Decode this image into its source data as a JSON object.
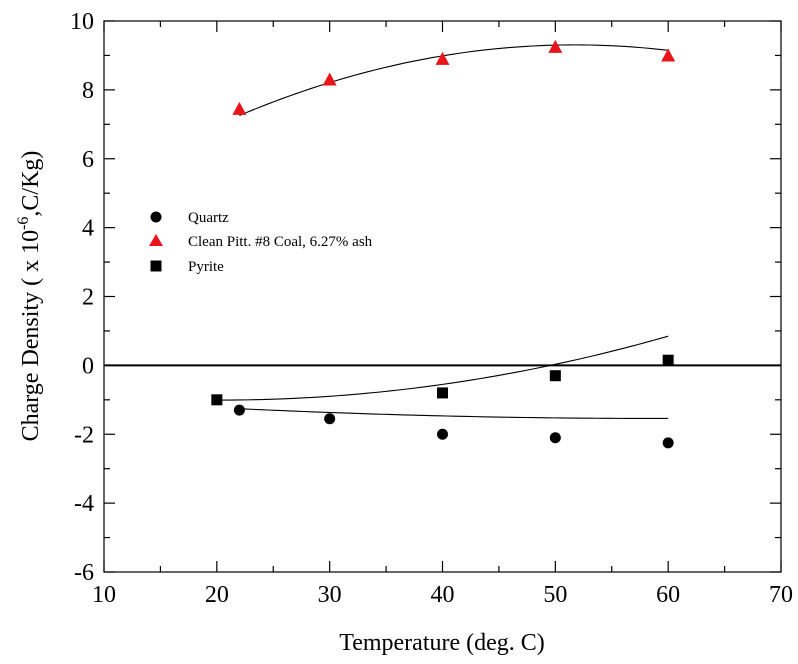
{
  "chart_data": {
    "type": "scatter",
    "title": "",
    "xlabel": "Temperature (deg. C)",
    "ylabel_main": "Charge Density ( x 10",
    "ylabel_exp": "-6",
    "ylabel_tail": ",C/Kg)",
    "xlim": [
      10,
      70
    ],
    "ylim": [
      -6,
      10
    ],
    "xticks": [
      10,
      20,
      30,
      40,
      50,
      60,
      70
    ],
    "yticks": [
      -6,
      -4,
      -2,
      0,
      2,
      4,
      6,
      8,
      10
    ],
    "grid": false,
    "legend_position": "middle-left",
    "zero_line": true,
    "series": [
      {
        "name": "Quartz",
        "marker": "circle",
        "color": "#000000",
        "x": [
          22,
          30,
          40,
          50,
          60
        ],
        "y": [
          -1.3,
          -1.55,
          -2.0,
          -2.1,
          -2.25
        ],
        "fit": [
          -0.82,
          -0.0245,
          0.000208
        ]
      },
      {
        "name": "Clean Pitt. #8 Coal, 6.27% ash",
        "marker": "triangle",
        "color": "#e8151b",
        "x": [
          22,
          30,
          40,
          50,
          60
        ],
        "y": [
          7.45,
          8.3,
          8.9,
          9.25,
          9.0
        ],
        "fit": [
          3.1,
          0.24,
          -0.00232
        ]
      },
      {
        "name": "Pyrite",
        "marker": "square",
        "color": "#000000",
        "x": [
          20,
          40,
          50,
          60
        ],
        "y": [
          -1.0,
          -0.8,
          -0.3,
          0.15
        ],
        "fit": [
          -0.52,
          -0.048,
          0.00118
        ]
      }
    ]
  }
}
